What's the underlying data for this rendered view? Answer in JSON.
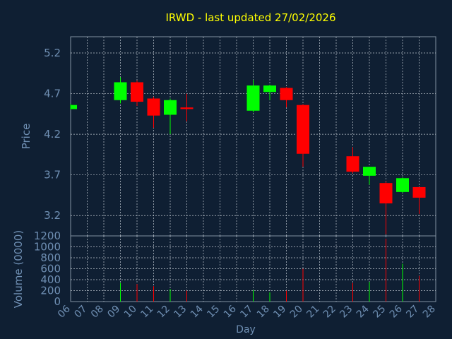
{
  "chart_data": {
    "type": "candlestick",
    "title": "IRWD - last updated 27/02/2026",
    "xlabel": "Day",
    "ylabel": "Price",
    "volume_label": "Volume (0000)",
    "x_ticks": [
      "06",
      "07",
      "08",
      "09",
      "10",
      "11",
      "12",
      "13",
      "14",
      "15",
      "16",
      "17",
      "18",
      "19",
      "20",
      "21",
      "22",
      "23",
      "24",
      "25",
      "26",
      "27",
      "28"
    ],
    "price_ticks": [
      "3.2",
      "3.7",
      "4.2",
      "4.7",
      "5.2"
    ],
    "volume_ticks": [
      "0",
      "200",
      "400",
      "600",
      "800",
      "1000",
      "1200"
    ],
    "price_range": [
      2.95,
      5.4
    ],
    "volume_range": [
      0,
      1200
    ],
    "x_range": [
      6,
      28
    ],
    "grid": true,
    "candles": [
      {
        "day": 6,
        "open": 4.51,
        "close": 4.56,
        "high": 4.57,
        "low": 4.5,
        "volume": 0
      },
      {
        "day": 9,
        "open": 4.62,
        "close": 4.84,
        "high": 4.9,
        "low": 4.58,
        "volume": 340
      },
      {
        "day": 10,
        "open": 4.84,
        "close": 4.6,
        "high": 4.86,
        "low": 4.55,
        "volume": 320
      },
      {
        "day": 11,
        "open": 4.64,
        "close": 4.43,
        "high": 4.66,
        "low": 4.28,
        "volume": 280
      },
      {
        "day": 12,
        "open": 4.44,
        "close": 4.62,
        "high": 4.64,
        "low": 4.2,
        "volume": 230
      },
      {
        "day": 13,
        "open": 4.53,
        "close": 4.51,
        "high": 4.7,
        "low": 4.36,
        "volume": 200
      },
      {
        "day": 17,
        "open": 4.49,
        "close": 4.8,
        "high": 4.87,
        "low": 4.47,
        "volume": 210
      },
      {
        "day": 18,
        "open": 4.72,
        "close": 4.8,
        "high": 4.81,
        "low": 4.62,
        "volume": 170
      },
      {
        "day": 19,
        "open": 4.77,
        "close": 4.62,
        "high": 4.78,
        "low": 4.53,
        "volume": 200
      },
      {
        "day": 20,
        "open": 4.56,
        "close": 3.96,
        "high": 4.57,
        "low": 3.8,
        "volume": 600
      },
      {
        "day": 23,
        "open": 3.93,
        "close": 3.74,
        "high": 4.04,
        "low": 3.72,
        "volume": 340
      },
      {
        "day": 24,
        "open": 3.69,
        "close": 3.8,
        "high": 3.8,
        "low": 3.58,
        "volume": 360
      },
      {
        "day": 25,
        "open": 3.6,
        "close": 3.35,
        "high": 3.62,
        "low": 2.97,
        "volume": 1150
      },
      {
        "day": 26,
        "open": 3.49,
        "close": 3.66,
        "high": 3.67,
        "low": 3.48,
        "volume": 690
      },
      {
        "day": 27,
        "open": 3.55,
        "close": 3.42,
        "high": 3.55,
        "low": 3.22,
        "volume": 470
      }
    ],
    "colors": {
      "background": "#0f1f33",
      "up": "#00ff00",
      "down": "#ff0000",
      "title": "#ffff00",
      "axis_text": "#6f8fb3",
      "axis_line": "#8090a0",
      "grid": "#c0c8d0"
    }
  }
}
